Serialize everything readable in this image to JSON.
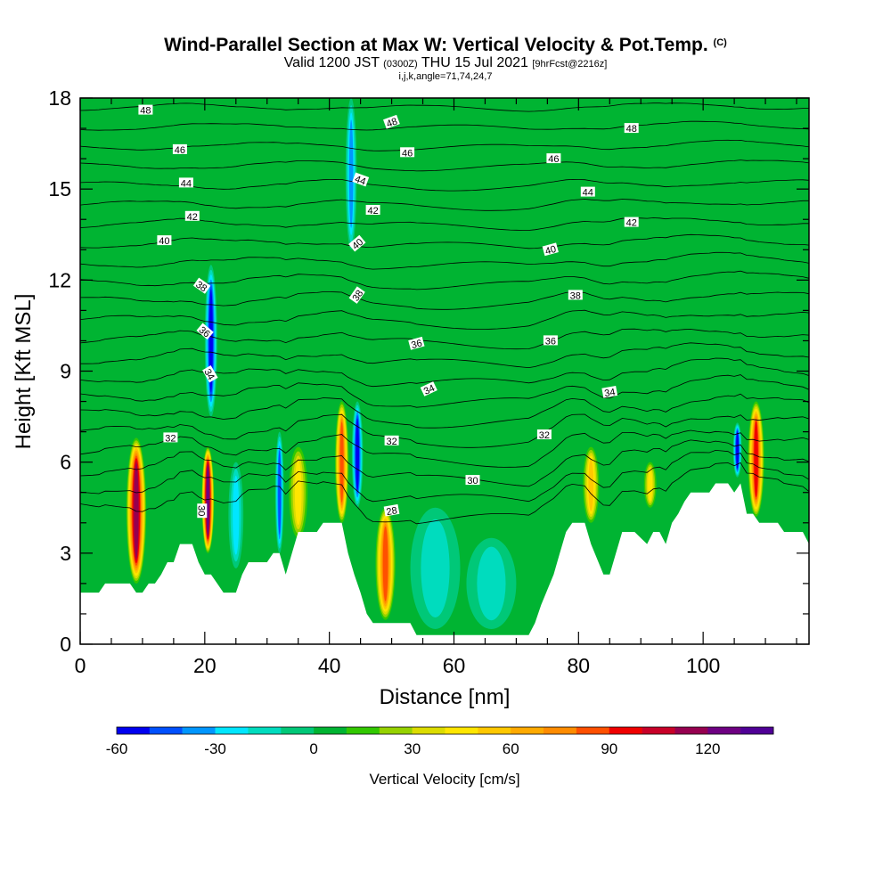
{
  "header": {
    "title": "Wind-Parallel Section at Max W: Vertical Velocity & Pot.Temp.",
    "copyright": "(C)",
    "valid_prefix": "Valid 1200 JST",
    "valid_utc": "(0300Z)",
    "valid_date": "THU 15 Jul 2021",
    "forecast": "[9hrFcst@2216z]",
    "indices": "i,j,k,angle=71,74,24,7"
  },
  "chart_data": {
    "type": "heatmap",
    "title": "Wind-Parallel Section at Max W: Vertical Velocity & Pot.Temp.",
    "xlabel": "Distance [nm]",
    "ylabel": "Height [Kft MSL]",
    "xlim": [
      0,
      117
    ],
    "ylim": [
      0,
      18
    ],
    "x_ticks": [
      0,
      20,
      40,
      60,
      80,
      100
    ],
    "y_ticks": [
      0,
      3,
      6,
      9,
      12,
      15,
      18
    ],
    "colorbar": {
      "title": "Vertical Velocity [cm/s]",
      "min": -60,
      "max": 140,
      "step": 10,
      "tick_values": [
        -60,
        -30,
        0,
        30,
        60,
        90,
        120
      ],
      "tick_labels": [
        "-60",
        "-30",
        "0",
        "30",
        "60",
        "90",
        "120"
      ],
      "colors": [
        "#0000f0",
        "#0050ff",
        "#0096ff",
        "#00e6ff",
        "#00dcbe",
        "#00c878",
        "#00b432",
        "#32c800",
        "#96d200",
        "#dcdc00",
        "#ffe600",
        "#ffc800",
        "#ffaa00",
        "#ff8c00",
        "#ff5000",
        "#f00000",
        "#c80028",
        "#960050",
        "#6e0082",
        "#500096"
      ]
    },
    "terrain_kft": [
      [
        0,
        1.7
      ],
      [
        3,
        1.7
      ],
      [
        4,
        2
      ],
      [
        8,
        2
      ],
      [
        9,
        1.7
      ],
      [
        10,
        1.7
      ],
      [
        11,
        2
      ],
      [
        12,
        2
      ],
      [
        13,
        2.3
      ],
      [
        14,
        2.7
      ],
      [
        15,
        2.7
      ],
      [
        16,
        3.3
      ],
      [
        18,
        3.3
      ],
      [
        19,
        2.7
      ],
      [
        20,
        2.3
      ],
      [
        21,
        2.3
      ],
      [
        22,
        2
      ],
      [
        23,
        1.7
      ],
      [
        25,
        1.7
      ],
      [
        26,
        2.3
      ],
      [
        27,
        2.7
      ],
      [
        30,
        2.7
      ],
      [
        31,
        3
      ],
      [
        32,
        3
      ],
      [
        33,
        2.3
      ],
      [
        34,
        3
      ],
      [
        35,
        3.7
      ],
      [
        38,
        3.7
      ],
      [
        39,
        4
      ],
      [
        42,
        4
      ],
      [
        43,
        3
      ],
      [
        44,
        2.3
      ],
      [
        45,
        1.7
      ],
      [
        46,
        1
      ],
      [
        47,
        0.7
      ],
      [
        53,
        0.7
      ],
      [
        54,
        0.3
      ],
      [
        72,
        0.3
      ],
      [
        73,
        0.7
      ],
      [
        74,
        1.3
      ],
      [
        76,
        2.3
      ],
      [
        77,
        3
      ],
      [
        78,
        3.7
      ],
      [
        79,
        4
      ],
      [
        81,
        4
      ],
      [
        82,
        3.3
      ],
      [
        84,
        2.3
      ],
      [
        85,
        2.3
      ],
      [
        86,
        3
      ],
      [
        87,
        3.7
      ],
      [
        89,
        3.7
      ],
      [
        91,
        3.3
      ],
      [
        92,
        3.7
      ],
      [
        93,
        3.7
      ],
      [
        94,
        3.3
      ],
      [
        95,
        4
      ],
      [
        96,
        4.3
      ],
      [
        97,
        4.7
      ],
      [
        98,
        5
      ],
      [
        101,
        5
      ],
      [
        102,
        5.3
      ],
      [
        104,
        5.3
      ],
      [
        105,
        5
      ],
      [
        106,
        5.3
      ],
      [
        107,
        4.3
      ],
      [
        108,
        4.3
      ],
      [
        109,
        4
      ],
      [
        112,
        4
      ],
      [
        113,
        3.7
      ],
      [
        116,
        3.7
      ],
      [
        117,
        3.3
      ]
    ],
    "w_cells": [
      {
        "x": 9,
        "z0": 2,
        "z1": 6.8,
        "w": 110,
        "halfwidth": 1.6
      },
      {
        "x": 20.5,
        "z0": 3,
        "z1": 6.5,
        "w": 125,
        "halfwidth": 1.0
      },
      {
        "x": 21,
        "z0": 7.5,
        "z1": 12.5,
        "w": -55,
        "halfwidth": 1.0
      },
      {
        "x": 25,
        "z0": 2.5,
        "z1": 6,
        "w": -25,
        "halfwidth": 1.2
      },
      {
        "x": 32,
        "z0": 3,
        "z1": 7,
        "w": -45,
        "halfwidth": 0.7
      },
      {
        "x": 35,
        "z0": 3.5,
        "z1": 6.5,
        "w": 40,
        "halfwidth": 1.5
      },
      {
        "x": 42,
        "z0": 4,
        "z1": 8,
        "w": 85,
        "halfwidth": 1.1
      },
      {
        "x": 44.5,
        "z0": 4.5,
        "z1": 8,
        "w": -50,
        "halfwidth": 0.9
      },
      {
        "x": 43.5,
        "z0": 13,
        "z1": 18,
        "w": -35,
        "halfwidth": 0.9
      },
      {
        "x": 49,
        "z0": 0.8,
        "z1": 4.5,
        "w": 80,
        "halfwidth": 1.6
      },
      {
        "x": 57,
        "z0": 0.5,
        "z1": 4.5,
        "w": -15,
        "halfwidth": 4
      },
      {
        "x": 66,
        "z0": 0.5,
        "z1": 3.5,
        "w": -15,
        "halfwidth": 4
      },
      {
        "x": 82,
        "z0": 4,
        "z1": 6.5,
        "w": 50,
        "halfwidth": 1.3
      },
      {
        "x": 91.5,
        "z0": 4.5,
        "z1": 6,
        "w": 45,
        "halfwidth": 1.0
      },
      {
        "x": 105.5,
        "z0": 5.5,
        "z1": 7.3,
        "w": -50,
        "halfwidth": 0.7
      },
      {
        "x": 108.5,
        "z0": 4.2,
        "z1": 8,
        "w": 90,
        "halfwidth": 1.3
      }
    ],
    "theta_levels": [
      28,
      29,
      30,
      31,
      32,
      33,
      34,
      35,
      36,
      37,
      38,
      39,
      40,
      41,
      42,
      43,
      44,
      45,
      46,
      47,
      48,
      49
    ],
    "theta_labels": [
      {
        "text": "48",
        "x": 10.5,
        "z": 17.6,
        "angle": 0
      },
      {
        "text": "46",
        "x": 16,
        "z": 16.3,
        "angle": 0
      },
      {
        "text": "44",
        "x": 17,
        "z": 15.2,
        "angle": 0
      },
      {
        "text": "42",
        "x": 18,
        "z": 14.1,
        "angle": 0
      },
      {
        "text": "40",
        "x": 13.5,
        "z": 13.3,
        "angle": 0
      },
      {
        "text": "38",
        "x": 19.5,
        "z": 11.8,
        "angle": 35
      },
      {
        "text": "36",
        "x": 20,
        "z": 10.3,
        "angle": 40
      },
      {
        "text": "34",
        "x": 20.8,
        "z": 8.9,
        "angle": 60
      },
      {
        "text": "32",
        "x": 14.5,
        "z": 6.8,
        "angle": 0
      },
      {
        "text": "30",
        "x": 19.5,
        "z": 4.4,
        "angle": 90
      },
      {
        "text": "48",
        "x": 50,
        "z": 17.2,
        "angle": -20
      },
      {
        "text": "46",
        "x": 52.5,
        "z": 16.2,
        "angle": 0
      },
      {
        "text": "44",
        "x": 45,
        "z": 15.3,
        "angle": 20
      },
      {
        "text": "42",
        "x": 47,
        "z": 14.3,
        "angle": 0
      },
      {
        "text": "40",
        "x": 44.5,
        "z": 13.2,
        "angle": -40
      },
      {
        "text": "38",
        "x": 44.5,
        "z": 11.5,
        "angle": -55
      },
      {
        "text": "36",
        "x": 54,
        "z": 9.9,
        "angle": -15
      },
      {
        "text": "34",
        "x": 56,
        "z": 8.4,
        "angle": -25
      },
      {
        "text": "32",
        "x": 50,
        "z": 6.7,
        "angle": 0
      },
      {
        "text": "30",
        "x": 63,
        "z": 5.4,
        "angle": 0
      },
      {
        "text": "28",
        "x": 50,
        "z": 4.4,
        "angle": -10
      },
      {
        "text": "48",
        "x": 88.5,
        "z": 17.0,
        "angle": 0
      },
      {
        "text": "46",
        "x": 76,
        "z": 16.0,
        "angle": 0
      },
      {
        "text": "44",
        "x": 81.5,
        "z": 14.9,
        "angle": 0
      },
      {
        "text": "42",
        "x": 88.5,
        "z": 13.9,
        "angle": 0
      },
      {
        "text": "40",
        "x": 75.5,
        "z": 13.0,
        "angle": -15
      },
      {
        "text": "38",
        "x": 79.5,
        "z": 11.5,
        "angle": 0
      },
      {
        "text": "36",
        "x": 75.5,
        "z": 10.0,
        "angle": 0
      },
      {
        "text": "34",
        "x": 85,
        "z": 8.3,
        "angle": -10
      },
      {
        "text": "32",
        "x": 74.5,
        "z": 6.9,
        "angle": 0
      }
    ]
  }
}
